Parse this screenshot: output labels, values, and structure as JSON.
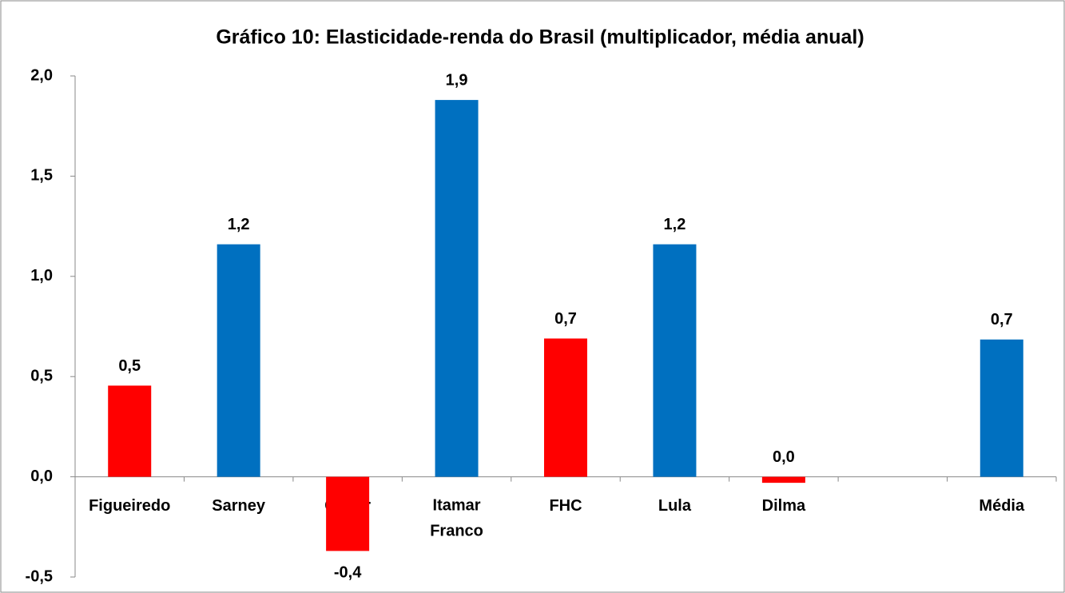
{
  "chart_data": {
    "type": "bar",
    "title": "Gráfico 10: Elasticidade-renda do Brasil (multiplicador, média anual)",
    "categories": [
      "Figueiredo",
      "Sarney",
      "Collor",
      "Itamar Franco",
      "FHC",
      "Lula",
      "Dilma",
      null,
      "Média"
    ],
    "values": [
      0.455,
      1.16,
      -0.37,
      1.88,
      0.69,
      1.16,
      -0.03,
      null,
      0.685
    ],
    "value_labels": [
      "0,5",
      "1,2",
      "-0,4",
      "1,9",
      "0,7",
      "1,2",
      "0,0",
      null,
      "0,7"
    ],
    "colors": [
      "#ff0000",
      "#0070c0",
      "#ff0000",
      "#0070c0",
      "#ff0000",
      "#0070c0",
      "#ff0000",
      null,
      "#0070c0"
    ],
    "ylim": [
      -0.5,
      2.0
    ],
    "yticks": [
      {
        "value": -0.5,
        "label": "-0,5"
      },
      {
        "value": 0,
        "label": "0,0"
      },
      {
        "value": 0.5,
        "label": "0,5"
      },
      {
        "value": 1.0,
        "label": "1,0"
      },
      {
        "value": 1.5,
        "label": "1,5"
      },
      {
        "value": 2.0,
        "label": "2,0"
      }
    ],
    "grid": false
  }
}
